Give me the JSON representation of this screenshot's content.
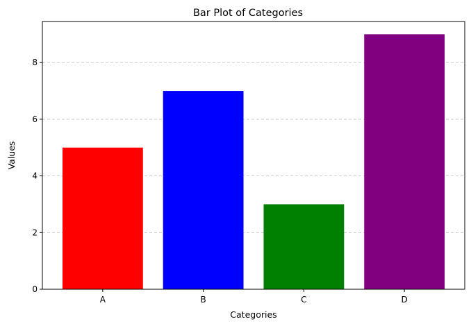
{
  "chart_data": {
    "type": "bar",
    "title": "Bar Plot of Categories",
    "xlabel": "Categories",
    "ylabel": "Values",
    "categories": [
      "A",
      "B",
      "C",
      "D"
    ],
    "values": [
      5,
      7,
      3,
      9
    ],
    "colors": [
      "#ff0000",
      "#0000ff",
      "#008000",
      "#800080"
    ],
    "ylim": [
      0,
      9.45
    ],
    "yticks": [
      0,
      2,
      4,
      6,
      8
    ],
    "grid": {
      "axis": "y",
      "style": "dashed"
    },
    "legend": "none"
  }
}
